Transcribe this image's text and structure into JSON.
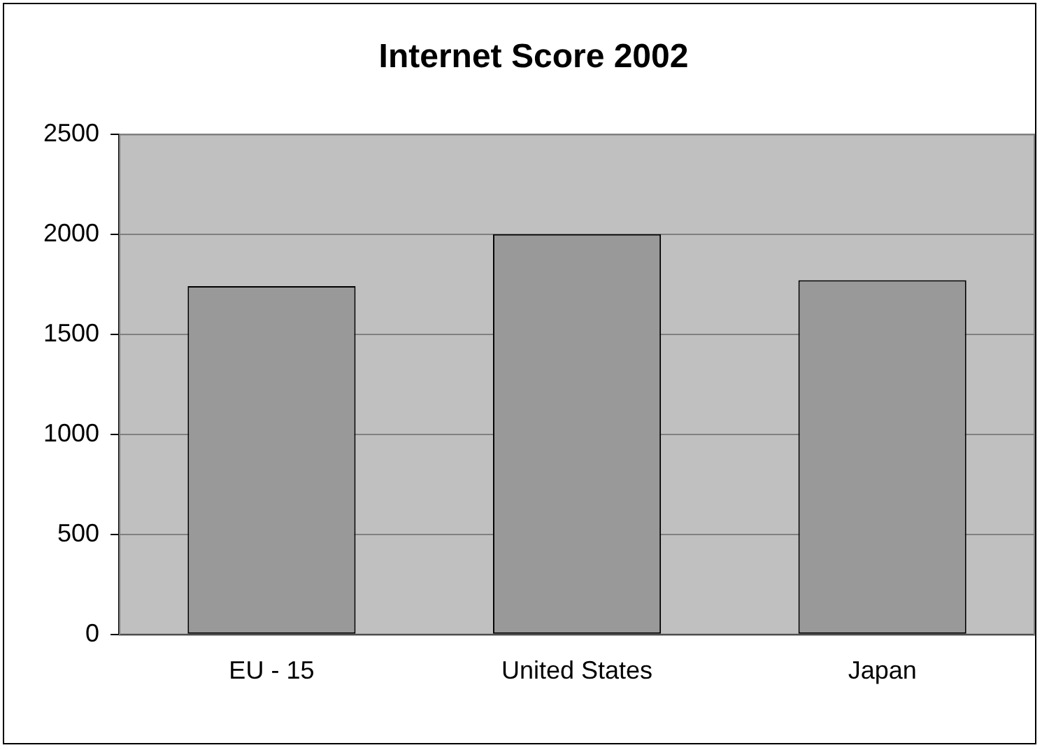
{
  "chart_data": {
    "type": "bar",
    "title": "Internet Score 2002",
    "categories": [
      "EU - 15",
      "United States",
      "Japan"
    ],
    "values": [
      1740,
      2000,
      1770
    ],
    "color": "#999999",
    "ylim": [
      0,
      2500
    ],
    "yticks": [
      0,
      500,
      1000,
      1500,
      2000,
      2500
    ],
    "grid": "y",
    "legend": false
  }
}
